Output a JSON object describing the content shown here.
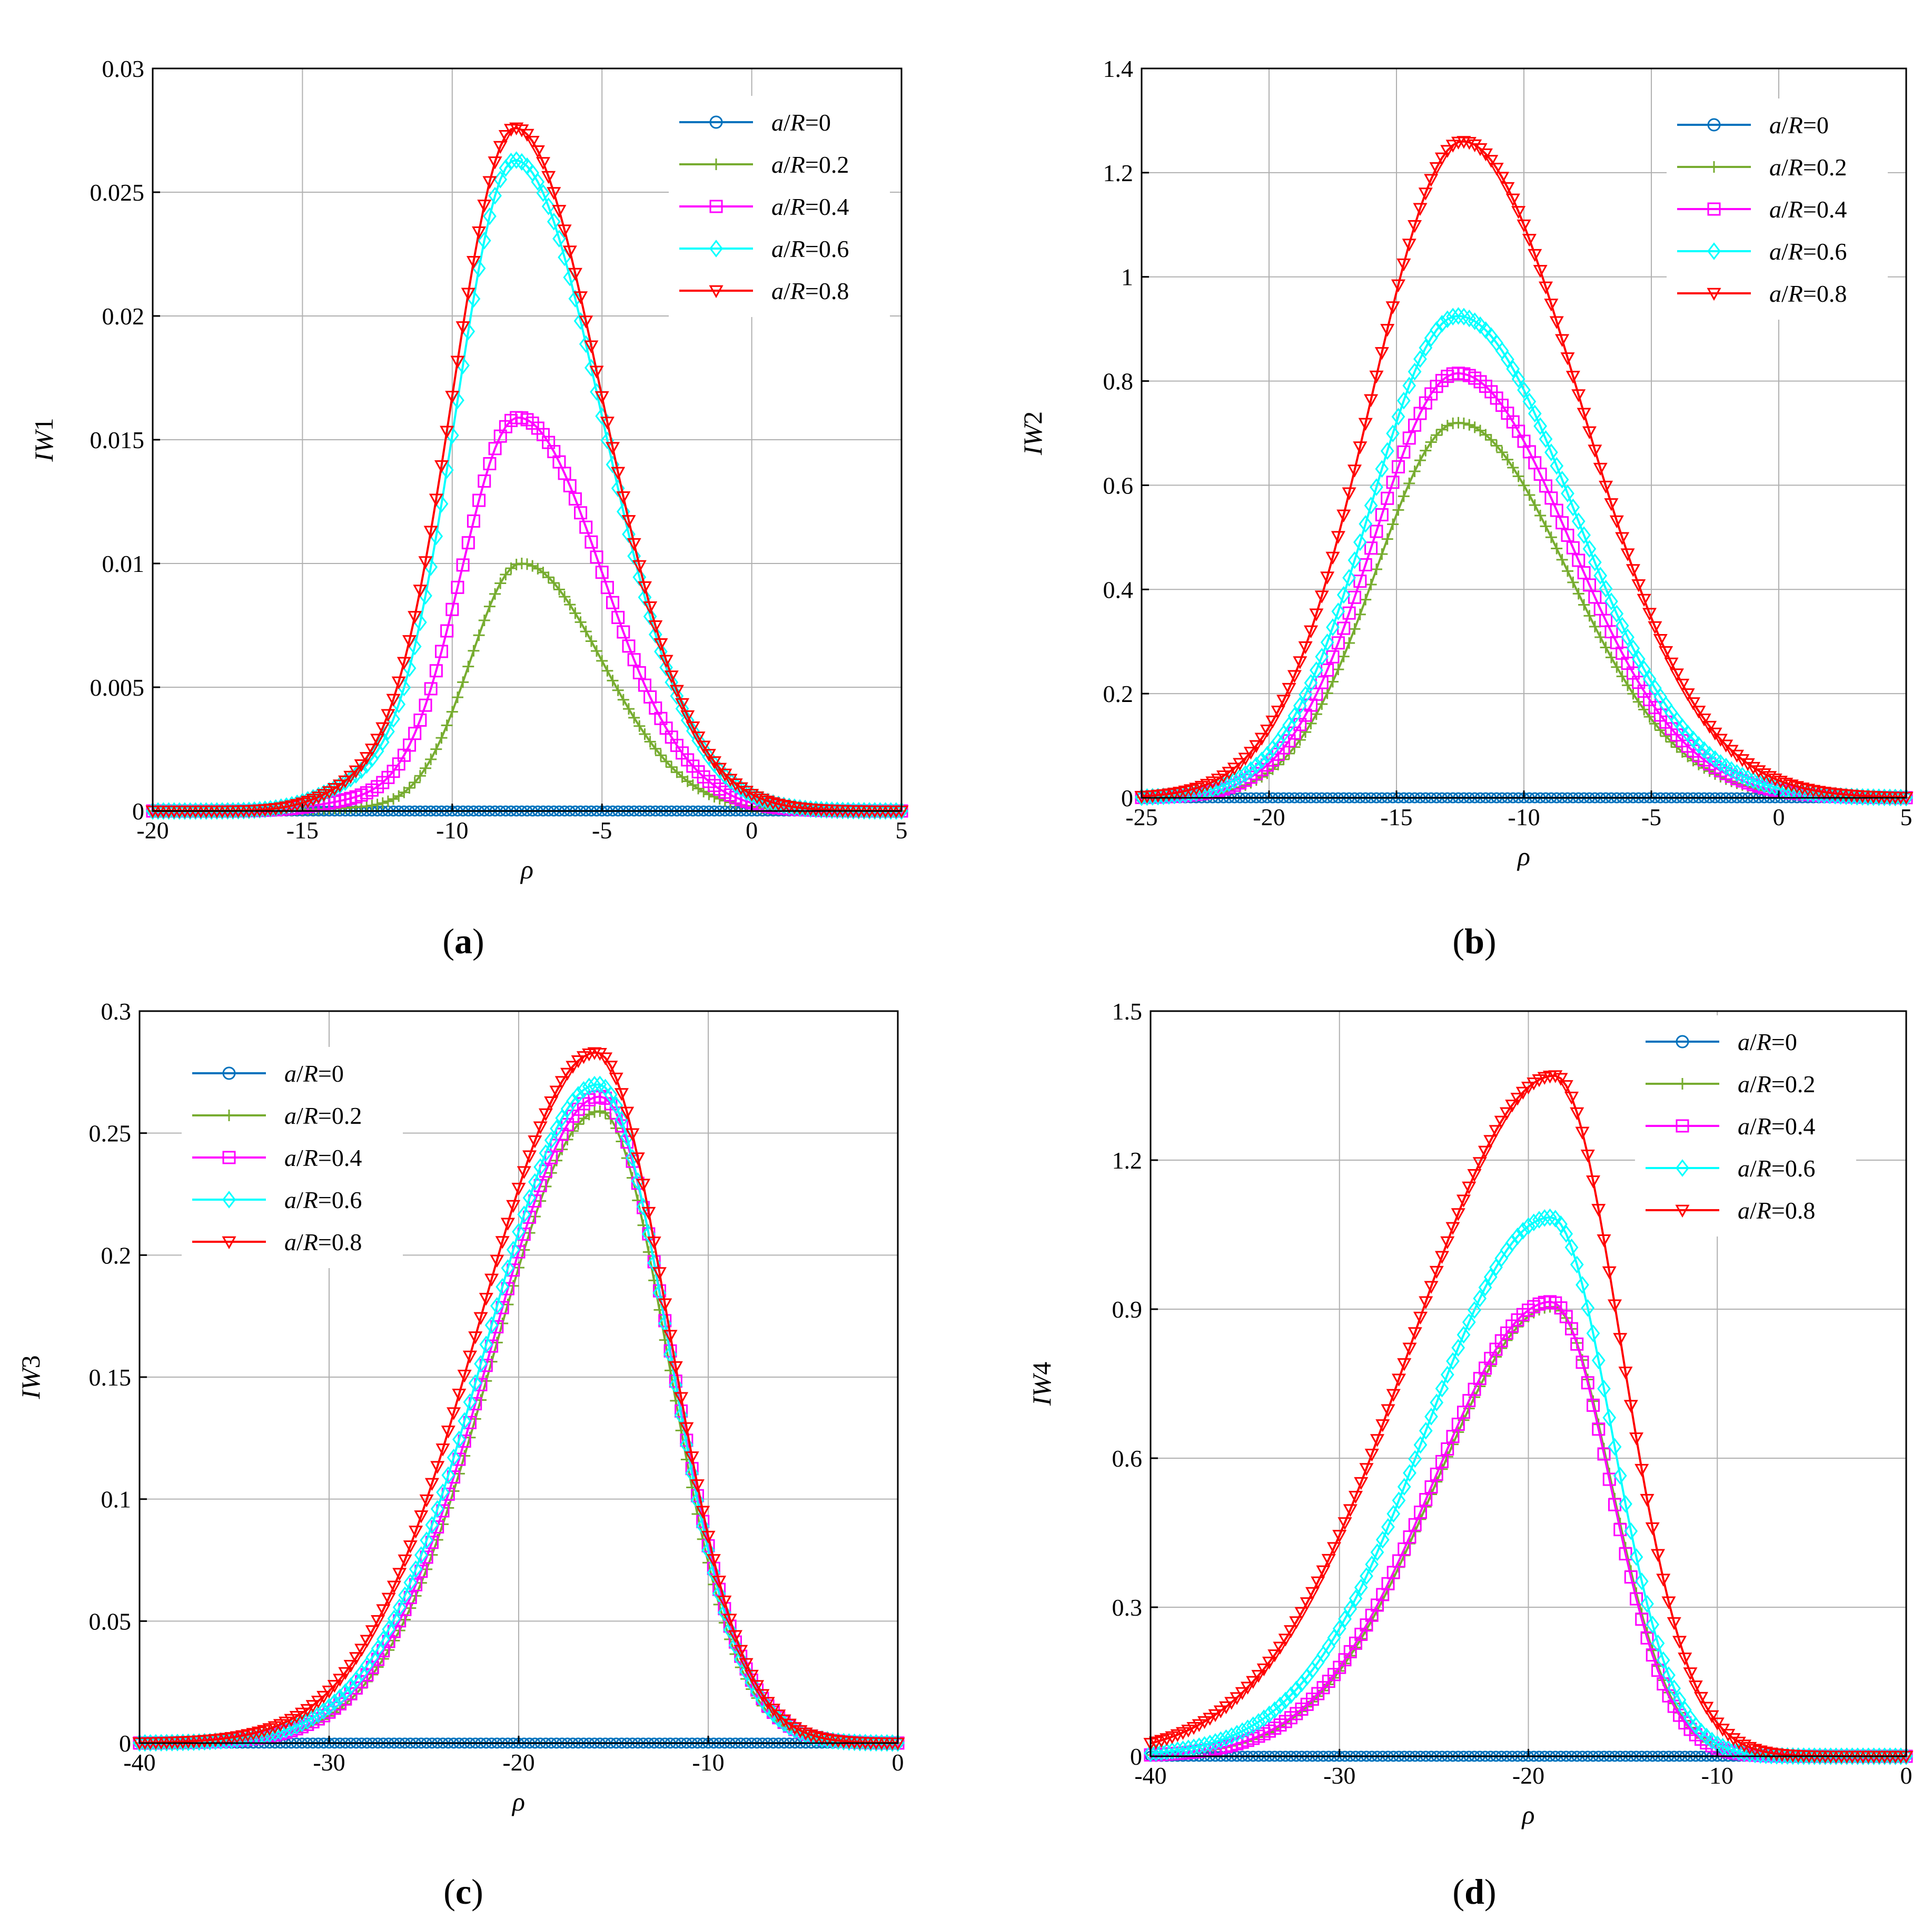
{
  "figure": {
    "panels": [
      {
        "id": "a",
        "caption": "a",
        "ylabel_italic": "IW",
        "ylabel_num": "1",
        "legend_pos": "top-right"
      },
      {
        "id": "b",
        "caption": "b",
        "ylabel_italic": "IW",
        "ylabel_num": "2",
        "legend_pos": "top-right"
      },
      {
        "id": "c",
        "caption": "c",
        "ylabel_italic": "IW",
        "ylabel_num": "3",
        "legend_pos": "top-left"
      },
      {
        "id": "d",
        "caption": "d",
        "ylabel_italic": "IW",
        "ylabel_num": "4",
        "legend_pos": "top-right"
      }
    ],
    "series_styles": [
      {
        "name": "a/R=0",
        "ratio": "0",
        "color": "#0072BD",
        "marker": "circle"
      },
      {
        "name": "a/R=0.2",
        "ratio": "0.2",
        "color": "#77AC30",
        "marker": "plus"
      },
      {
        "name": "a/R=0.4",
        "ratio": "0.4",
        "color": "#FF00FF",
        "marker": "square"
      },
      {
        "name": "a/R=0.6",
        "ratio": "0.6",
        "color": "#00FFFF",
        "marker": "diamond"
      },
      {
        "name": "a/R=0.8",
        "ratio": "0.8",
        "color": "#FF0000",
        "marker": "triangle-down"
      }
    ]
  },
  "chart_data": [
    {
      "type": "line",
      "title": "",
      "xlabel": "ρ",
      "ylabel": "IW1",
      "xlim": [
        -20,
        5
      ],
      "ylim": [
        0,
        0.03
      ],
      "xticks": [
        -20,
        -15,
        -10,
        -5,
        0,
        5
      ],
      "yticks": [
        0,
        0.005,
        0.01,
        0.015,
        0.02,
        0.025,
        0.03
      ],
      "xtick_labels": [
        "-20",
        "-15",
        "-10",
        "-5",
        "0",
        "5"
      ],
      "ytick_labels": [
        "0",
        "0.005",
        "0.01",
        "0.015",
        "0.02",
        "0.025",
        "0.03"
      ],
      "grid": true,
      "series": [
        {
          "name": "a/R=0",
          "peak_x": -7.8,
          "peak_y": 0,
          "width_left": 2,
          "width_right": 2.6,
          "bump_y": 0
        },
        {
          "name": "a/R=0.2",
          "peak_x": -7.7,
          "peak_y": 0.01,
          "width_left": 1.7,
          "width_right": 2.7,
          "bump_y": 0.0001
        },
        {
          "name": "a/R=0.4",
          "peak_x": -7.8,
          "peak_y": 0.0159,
          "width_left": 1.9,
          "width_right": 2.8,
          "bump_y": 0.0003
        },
        {
          "name": "a/R=0.6",
          "peak_x": -7.9,
          "peak_y": 0.0263,
          "width_left": 2.0,
          "width_right": 2.9,
          "bump_y": 0.0007
        },
        {
          "name": "a/R=0.8",
          "peak_x": -7.9,
          "peak_y": 0.0276,
          "width_left": 2.1,
          "width_right": 2.9,
          "bump_y": 0.0005
        }
      ]
    },
    {
      "type": "line",
      "title": "",
      "xlabel": "ρ",
      "ylabel": "IW2",
      "xlim": [
        -25,
        5
      ],
      "ylim": [
        0,
        1.4
      ],
      "xticks": [
        -25,
        -20,
        -15,
        -10,
        -5,
        0,
        5
      ],
      "yticks": [
        0,
        0.2,
        0.4,
        0.6,
        0.8,
        1,
        1.2,
        1.4
      ],
      "xtick_labels": [
        "-25",
        "-20",
        "-15",
        "-10",
        "-5",
        "0",
        "5"
      ],
      "ytick_labels": [
        "0",
        "0.2",
        "0.4",
        "0.6",
        "0.8",
        "1",
        "1.2",
        "1.4"
      ],
      "grid": true,
      "series": [
        {
          "name": "a/R=0",
          "peak_x": -12.6,
          "peak_y": 0,
          "width_left": 3.3,
          "width_right": 4.4,
          "bump_y": 0
        },
        {
          "name": "a/R=0.2",
          "peak_x": -12.6,
          "peak_y": 0.72,
          "width_left": 3.2,
          "width_right": 4.3,
          "bump_y": 0
        },
        {
          "name": "a/R=0.4",
          "peak_x": -12.6,
          "peak_y": 0.815,
          "width_left": 3.3,
          "width_right": 4.4,
          "bump_y": 0
        },
        {
          "name": "a/R=0.6",
          "peak_x": -12.6,
          "peak_y": 0.925,
          "width_left": 3.4,
          "width_right": 4.5,
          "bump_y": 0
        },
        {
          "name": "a/R=0.8",
          "peak_x": -12.4,
          "peak_y": 1.26,
          "width_left": 3.6,
          "width_right": 4.6,
          "bump_y": 0
        }
      ]
    },
    {
      "type": "line",
      "title": "",
      "xlabel": "ρ",
      "ylabel": "IW3",
      "xlim": [
        -40,
        0
      ],
      "ylim": [
        0,
        0.3
      ],
      "xticks": [
        -40,
        -30,
        -20,
        -10,
        0
      ],
      "yticks": [
        0,
        0.05,
        0.1,
        0.15,
        0.2,
        0.25,
        0.3
      ],
      "xtick_labels": [
        "-40",
        "-30",
        "-20",
        "-10",
        "0"
      ],
      "ytick_labels": [
        "0",
        "0.05",
        "0.1",
        "0.15",
        "0.2",
        "0.25",
        "0.3"
      ],
      "grid": true,
      "series": [
        {
          "name": "a/R=0",
          "peak_x": -15.8,
          "peak_y": 0,
          "width_left": 5.8,
          "width_right": 3.7,
          "bump_y": 0
        },
        {
          "name": "a/R=0.2",
          "peak_x": -15.7,
          "peak_y": 0.259,
          "width_left": 5.7,
          "width_right": 3.6,
          "bump_y": 0
        },
        {
          "name": "a/R=0.4",
          "peak_x": -15.7,
          "peak_y": 0.265,
          "width_left": 5.8,
          "width_right": 3.7,
          "bump_y": 0
        },
        {
          "name": "a/R=0.6",
          "peak_x": -15.8,
          "peak_y": 0.27,
          "width_left": 5.9,
          "width_right": 3.7,
          "bump_y": 0
        },
        {
          "name": "a/R=0.8",
          "peak_x": -15.9,
          "peak_y": 0.283,
          "width_left": 6.2,
          "width_right": 3.8,
          "bump_y": 0
        }
      ]
    },
    {
      "type": "line",
      "title": "",
      "xlabel": "ρ",
      "ylabel": "IW4",
      "xlim": [
        -40,
        0
      ],
      "ylim": [
        0,
        1.5
      ],
      "xticks": [
        -40,
        -30,
        -20,
        -10,
        0
      ],
      "yticks": [
        0,
        0.3,
        0.6,
        0.9,
        1.2,
        1.5
      ],
      "xtick_labels": [
        "-40",
        "-30",
        "-20",
        "-10",
        "0"
      ],
      "ytick_labels": [
        "0",
        "0.3",
        "0.6",
        "0.9",
        "1.2",
        "1.5"
      ],
      "grid": true,
      "series": [
        {
          "name": "a/R=0",
          "peak_x": -18.7,
          "peak_y": 0,
          "width_left": 6.2,
          "width_right": 3.1,
          "bump_y": 0
        },
        {
          "name": "a/R=0.2",
          "peak_x": -18.7,
          "peak_y": 0.905,
          "width_left": 6.2,
          "width_right": 3.1,
          "bump_y": 0
        },
        {
          "name": "a/R=0.4",
          "peak_x": -18.8,
          "peak_y": 0.915,
          "width_left": 6.2,
          "width_right": 3.1,
          "bump_y": 0
        },
        {
          "name": "a/R=0.6",
          "peak_x": -18.8,
          "peak_y": 1.085,
          "width_left": 6.6,
          "width_right": 3.2,
          "bump_y": 0
        },
        {
          "name": "a/R=0.8",
          "peak_x": -18.6,
          "peak_y": 1.37,
          "width_left": 7.6,
          "width_right": 3.5,
          "bump_y": 0
        }
      ]
    }
  ]
}
